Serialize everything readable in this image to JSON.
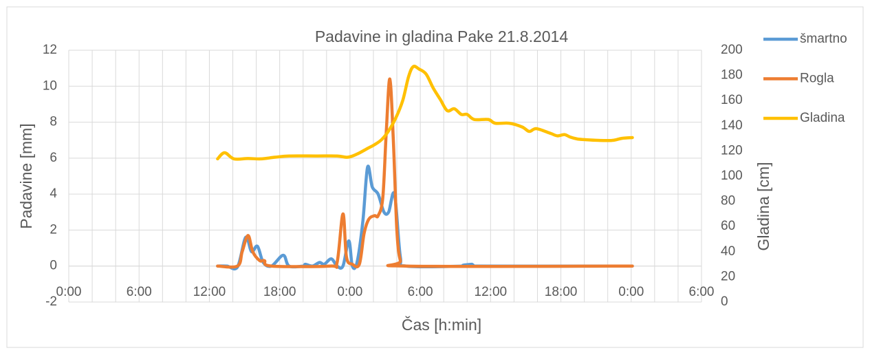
{
  "chart_data": {
    "type": "line",
    "title": "Padavine in gladina Pake 21.8.2014",
    "x_label": "Čas [h:min]",
    "y_label": "Padavine [mm]",
    "y2_label": "Gladina [cm]",
    "xlim": [
      0,
      54
    ],
    "xticks": [
      {
        "value": 0,
        "label": "0:00"
      },
      {
        "value": 6,
        "label": "6:00"
      },
      {
        "value": 12,
        "label": "12:00"
      },
      {
        "value": 18,
        "label": "18:00"
      },
      {
        "value": 24,
        "label": "0:00"
      },
      {
        "value": 30,
        "label": "6:00"
      },
      {
        "value": 36,
        "label": "12:00"
      },
      {
        "value": 42,
        "label": "18:00"
      },
      {
        "value": 48,
        "label": "0:00"
      },
      {
        "value": 54,
        "label": "6:00"
      }
    ],
    "ylim": [
      -2,
      12
    ],
    "yticks": [
      -2,
      0,
      2,
      4,
      6,
      8,
      10,
      12
    ],
    "y2lim": [
      0,
      200
    ],
    "y2ticks": [
      0,
      20,
      40,
      60,
      80,
      100,
      120,
      140,
      160,
      180,
      200
    ],
    "grid": true,
    "legend": "right",
    "series": [
      {
        "name": "šmartno",
        "color": "#5b9bd5",
        "x": [
          12.7,
          13.5,
          14.4,
          15.1,
          15.6,
          16.1,
          16.6,
          17.3,
          18.3,
          18.8,
          20.0,
          20.2,
          20.8,
          21.4,
          21.8,
          22.4,
          22.9,
          23.4,
          23.9,
          24.2,
          24.6,
          25.1,
          25.5,
          25.9,
          26.4,
          26.9,
          27.3,
          27.8,
          28.3,
          28.8,
          34.0,
          34.4,
          34.7,
          48.1
        ],
        "values": [
          0,
          0,
          -0.05,
          1.6,
          0.8,
          1.1,
          0.2,
          0,
          0.6,
          0,
          0,
          0.1,
          0,
          0.2,
          0.1,
          0.4,
          0,
          0,
          1.4,
          0,
          0.2,
          2.5,
          5.5,
          4.4,
          4.0,
          3.0,
          3.0,
          4.0,
          0.5,
          0,
          0,
          0.1,
          0,
          0
        ]
      },
      {
        "name": "Rogla",
        "color": "#ed7d31",
        "x": [
          12.7,
          14.4,
          14.8,
          15.3,
          15.7,
          16.3,
          16.7,
          17.3,
          22.3,
          22.9,
          23.4,
          23.7,
          24.2,
          24.8,
          25.2,
          25.6,
          26.1,
          26.4,
          26.8,
          27.1,
          27.4,
          27.7,
          28.0,
          28.3,
          28.8,
          48.1
        ],
        "values": [
          0,
          0,
          0.8,
          1.7,
          0.8,
          0.3,
          0.3,
          0,
          0,
          0.2,
          2.9,
          0.5,
          0.1,
          0.1,
          1.8,
          2.6,
          2.8,
          2.8,
          3.8,
          7.5,
          10.4,
          7,
          2,
          0.3,
          0,
          0
        ]
      },
      {
        "name": "Gladina",
        "color": "#ffc000",
        "axis": "y2",
        "x": [
          12.7,
          13.3,
          14.1,
          15.3,
          16.4,
          17.6,
          18.8,
          21.1,
          22.9,
          23.8,
          24.6,
          25.5,
          26.1,
          26.7,
          27.3,
          27.9,
          28.5,
          29.0,
          29.4,
          29.9,
          30.5,
          31.1,
          31.7,
          32.3,
          32.9,
          33.5,
          34.0,
          34.6,
          35.8,
          36.4,
          37.6,
          38.7,
          39.3,
          39.9,
          41.1,
          41.7,
          42.3,
          42.8,
          43.4,
          44.0,
          45.2,
          46.4,
          47.2,
          48.1
        ],
        "values": [
          113.7,
          118.6,
          113.7,
          114,
          113.7,
          115,
          116,
          116,
          116,
          115,
          117.5,
          122,
          125,
          129,
          136,
          146,
          160,
          179,
          187,
          185,
          181,
          170,
          161,
          152,
          153.5,
          149,
          149,
          145,
          145,
          142,
          142,
          139,
          135.5,
          137.7,
          134,
          132,
          133,
          131,
          129.5,
          129,
          128.4,
          128.4,
          130,
          130.6
        ]
      }
    ]
  }
}
